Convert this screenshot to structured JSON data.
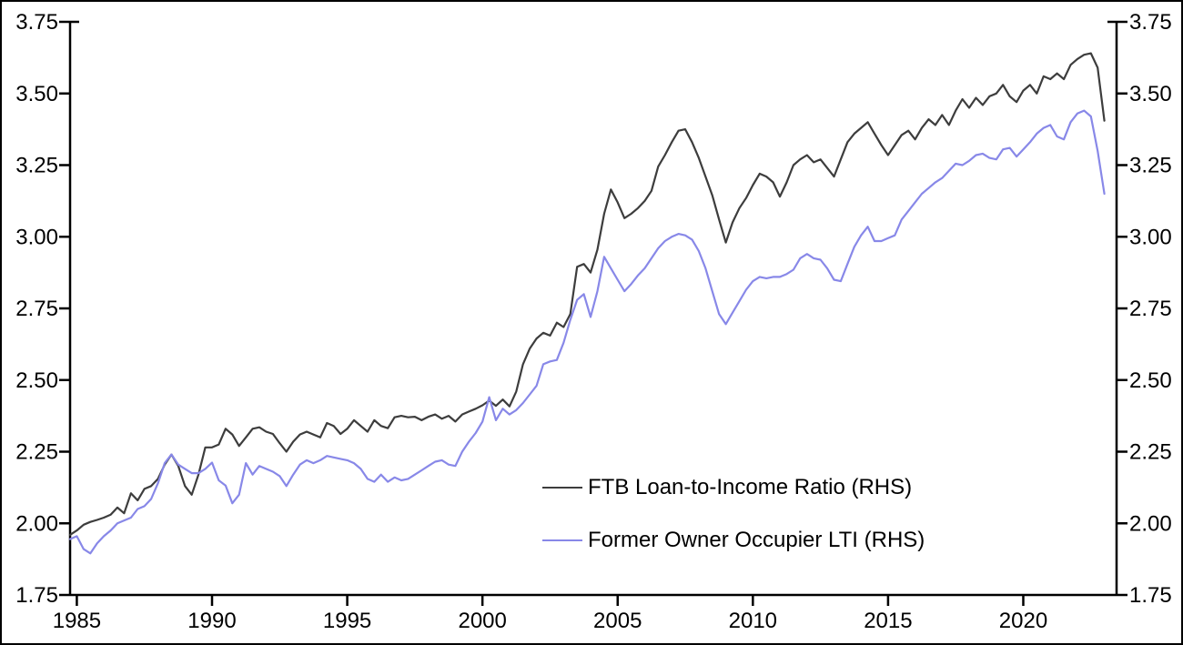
{
  "chart_data": {
    "type": "line",
    "title": "",
    "xlabel": "",
    "ylabel": "",
    "grid": false,
    "dual_y_axis": true,
    "ylim": [
      1.75,
      3.75
    ],
    "y_ticks": [
      1.75,
      2.0,
      2.25,
      2.5,
      2.75,
      3.0,
      3.25,
      3.5,
      3.75
    ],
    "y_tick_labels": [
      "1.75",
      "2.00",
      "2.25",
      "2.50",
      "2.75",
      "3.00",
      "3.25",
      "3.50",
      "3.75"
    ],
    "x_axis": {
      "min": 1984.75,
      "max": 2023.45,
      "ticks": [
        1985,
        1990,
        1995,
        2000,
        2005,
        2010,
        2015,
        2020
      ]
    },
    "legend_position": "inside-lower-middle",
    "x": [
      1984.75,
      1985.0,
      1985.25,
      1985.5,
      1985.75,
      1986.0,
      1986.25,
      1986.5,
      1986.75,
      1987.0,
      1987.25,
      1987.5,
      1987.75,
      1988.0,
      1988.25,
      1988.5,
      1988.75,
      1989.0,
      1989.25,
      1989.5,
      1989.75,
      1990.0,
      1990.25,
      1990.5,
      1990.75,
      1991.0,
      1991.25,
      1991.5,
      1991.75,
      1992.0,
      1992.25,
      1992.5,
      1992.75,
      1993.0,
      1993.25,
      1993.5,
      1993.75,
      1994.0,
      1994.25,
      1994.5,
      1994.75,
      1995.0,
      1995.25,
      1995.5,
      1995.75,
      1996.0,
      1996.25,
      1996.5,
      1996.75,
      1997.0,
      1997.25,
      1997.5,
      1997.75,
      1998.0,
      1998.25,
      1998.5,
      1998.75,
      1999.0,
      1999.25,
      1999.5,
      1999.75,
      2000.0,
      2000.25,
      2000.5,
      2000.75,
      2001.0,
      2001.25,
      2001.5,
      2001.75,
      2002.0,
      2002.25,
      2002.5,
      2002.75,
      2003.0,
      2003.25,
      2003.5,
      2003.75,
      2004.0,
      2004.25,
      2004.5,
      2004.75,
      2005.0,
      2005.25,
      2005.5,
      2005.75,
      2006.0,
      2006.25,
      2006.5,
      2006.75,
      2007.0,
      2007.25,
      2007.5,
      2007.75,
      2008.0,
      2008.25,
      2008.5,
      2008.75,
      2009.0,
      2009.25,
      2009.5,
      2009.75,
      2010.0,
      2010.25,
      2010.5,
      2010.75,
      2011.0,
      2011.25,
      2011.5,
      2011.75,
      2012.0,
      2012.25,
      2012.5,
      2012.75,
      2013.0,
      2013.25,
      2013.5,
      2013.75,
      2014.0,
      2014.25,
      2014.5,
      2014.75,
      2015.0,
      2015.25,
      2015.5,
      2015.75,
      2016.0,
      2016.25,
      2016.5,
      2016.75,
      2017.0,
      2017.25,
      2017.5,
      2017.75,
      2018.0,
      2018.25,
      2018.5,
      2018.75,
      2019.0,
      2019.25,
      2019.5,
      2019.75,
      2020.0,
      2020.25,
      2020.5,
      2020.75,
      2021.0,
      2021.25,
      2021.5,
      2021.75,
      2022.0,
      2022.25,
      2022.5,
      2022.75,
      2023.0
    ],
    "series": [
      {
        "name": "FTB Loan-to-Income Ratio (RHS)",
        "color": "#3d3d3d",
        "values": [
          1.96,
          1.975,
          1.995,
          2.005,
          2.012,
          2.02,
          2.03,
          2.055,
          2.035,
          2.105,
          2.08,
          2.12,
          2.13,
          2.155,
          2.205,
          2.24,
          2.2,
          2.13,
          2.1,
          2.17,
          2.265,
          2.265,
          2.275,
          2.33,
          2.31,
          2.27,
          2.3,
          2.33,
          2.335,
          2.32,
          2.312,
          2.28,
          2.25,
          2.285,
          2.31,
          2.32,
          2.31,
          2.3,
          2.35,
          2.34,
          2.312,
          2.33,
          2.36,
          2.34,
          2.32,
          2.36,
          2.34,
          2.332,
          2.37,
          2.375,
          2.37,
          2.372,
          2.36,
          2.372,
          2.38,
          2.365,
          2.375,
          2.355,
          2.38,
          2.39,
          2.4,
          2.412,
          2.428,
          2.41,
          2.432,
          2.408,
          2.46,
          2.555,
          2.61,
          2.645,
          2.665,
          2.655,
          2.7,
          2.685,
          2.73,
          2.895,
          2.905,
          2.875,
          2.955,
          3.08,
          3.165,
          3.12,
          3.065,
          3.08,
          3.1,
          3.125,
          3.16,
          3.245,
          3.285,
          3.33,
          3.37,
          3.375,
          3.33,
          3.275,
          3.21,
          3.145,
          3.06,
          2.98,
          3.05,
          3.1,
          3.135,
          3.18,
          3.22,
          3.21,
          3.19,
          3.14,
          3.19,
          3.25,
          3.27,
          3.285,
          3.26,
          3.27,
          3.24,
          3.21,
          3.27,
          3.33,
          3.36,
          3.38,
          3.4,
          3.36,
          3.32,
          3.285,
          3.32,
          3.355,
          3.37,
          3.34,
          3.38,
          3.41,
          3.39,
          3.425,
          3.39,
          3.44,
          3.48,
          3.45,
          3.485,
          3.46,
          3.49,
          3.5,
          3.53,
          3.49,
          3.47,
          3.51,
          3.53,
          3.5,
          3.56,
          3.55,
          3.57,
          3.55,
          3.6,
          3.62,
          3.635,
          3.64,
          3.59,
          3.405
        ]
      },
      {
        "name": "Former Owner Occupier LTI (RHS)",
        "color": "#8888e8",
        "values": [
          1.945,
          1.955,
          1.91,
          1.895,
          1.93,
          1.955,
          1.975,
          2.0,
          2.01,
          2.02,
          2.05,
          2.06,
          2.085,
          2.14,
          2.21,
          2.24,
          2.205,
          2.19,
          2.175,
          2.175,
          2.19,
          2.212,
          2.15,
          2.132,
          2.07,
          2.1,
          2.21,
          2.17,
          2.2,
          2.19,
          2.18,
          2.165,
          2.13,
          2.17,
          2.205,
          2.22,
          2.21,
          2.22,
          2.235,
          2.23,
          2.225,
          2.22,
          2.21,
          2.19,
          2.155,
          2.145,
          2.17,
          2.145,
          2.16,
          2.15,
          2.155,
          2.17,
          2.185,
          2.2,
          2.215,
          2.22,
          2.205,
          2.2,
          2.25,
          2.285,
          2.315,
          2.355,
          2.44,
          2.36,
          2.4,
          2.38,
          2.395,
          2.42,
          2.45,
          2.48,
          2.555,
          2.565,
          2.57,
          2.63,
          2.71,
          2.78,
          2.8,
          2.72,
          2.81,
          2.93,
          2.89,
          2.85,
          2.81,
          2.835,
          2.865,
          2.89,
          2.925,
          2.96,
          2.985,
          3.0,
          3.01,
          3.005,
          2.99,
          2.95,
          2.89,
          2.81,
          2.73,
          2.695,
          2.735,
          2.775,
          2.815,
          2.845,
          2.86,
          2.855,
          2.86,
          2.86,
          2.87,
          2.885,
          2.925,
          2.94,
          2.925,
          2.92,
          2.89,
          2.85,
          2.845,
          2.905,
          2.965,
          3.005,
          3.035,
          2.985,
          2.985,
          2.995,
          3.005,
          3.06,
          3.09,
          3.12,
          3.15,
          3.17,
          3.19,
          3.205,
          3.23,
          3.255,
          3.25,
          3.265,
          3.285,
          3.29,
          3.275,
          3.27,
          3.305,
          3.31,
          3.28,
          3.305,
          3.33,
          3.36,
          3.38,
          3.39,
          3.35,
          3.34,
          3.4,
          3.43,
          3.44,
          3.42,
          3.3,
          3.15
        ]
      }
    ]
  },
  "legend": {
    "item1": "FTB Loan-to-Income Ratio (RHS)",
    "item2": "Former Owner Occupier LTI (RHS)"
  },
  "colors": {
    "axis": "#000000",
    "text": "#000000",
    "series1": "#3d3d3d",
    "series2": "#8888e8",
    "background": "#ffffff"
  }
}
